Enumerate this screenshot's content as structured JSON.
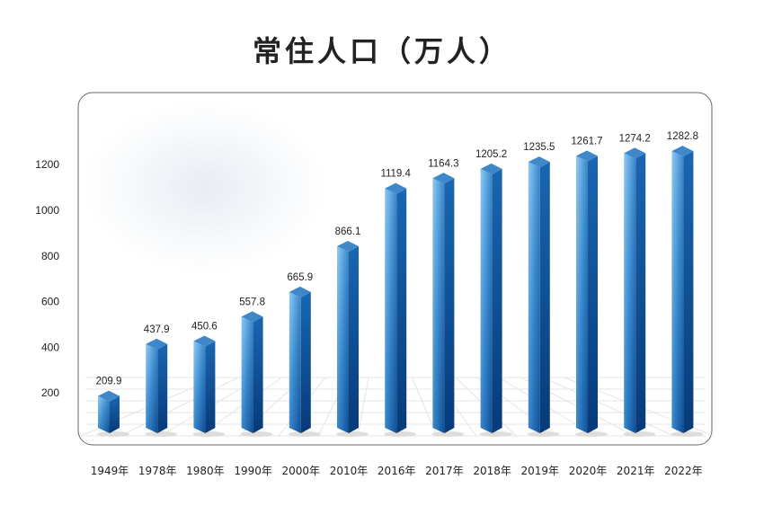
{
  "chart_data": {
    "type": "bar",
    "title": "常住人口（万人）",
    "xlabel": "",
    "ylabel": "",
    "categories": [
      "1949年",
      "1978年",
      "1980年",
      "1990年",
      "2000年",
      "2010年",
      "2016年",
      "2017年",
      "2018年",
      "2019年",
      "2020年",
      "2021年",
      "2022年"
    ],
    "values": [
      209.9,
      437.9,
      450.6,
      557.8,
      665.9,
      866.1,
      1119.4,
      1164.3,
      1205.2,
      1235.5,
      1261.7,
      1274.2,
      1282.8
    ],
    "value_labels": [
      "209.9",
      "437.9",
      "450.6",
      "557.8",
      "665.9",
      "866.1",
      "1119.4",
      "1164.3",
      "1205.2",
      "1235.5",
      "1261.7",
      "1274.2",
      "1282.8"
    ],
    "yticks": [
      200,
      400,
      600,
      800,
      1000,
      1200
    ],
    "ylim": [
      0,
      1400
    ],
    "grid": false,
    "legend": "none",
    "colors": {
      "bar_light": "#7cc0ec",
      "bar_dark": "#0d4f96",
      "bar_side": "#0a3f7e",
      "top": "#3e86c9"
    }
  }
}
